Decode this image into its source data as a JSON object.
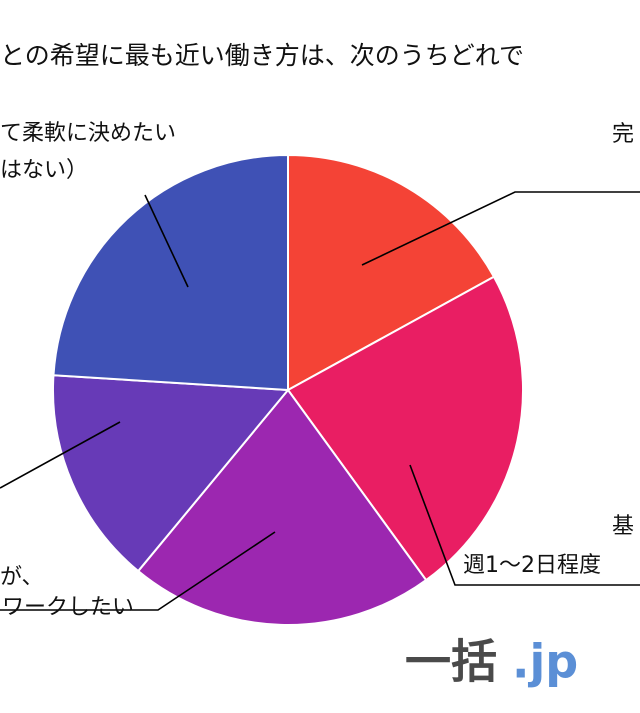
{
  "chart_data": {
    "type": "pie",
    "title": "との希望に最も近い働き方は、次のうちどれで",
    "categories": [
      [
        "完"
      ],
      [
        "基",
        "週1〜2日程度"
      ],
      [
        "が、",
        "ワークしたい"
      ],
      null,
      [
        "て柔軟に決めたい",
        "はない）"
      ]
    ],
    "values": [
      17,
      23,
      21,
      15,
      24
    ],
    "colors": [
      "#f44336",
      "#e91e63",
      "#9c27b0",
      "#673ab7",
      "#3f51b5"
    ],
    "watermark": [
      "一括",
      ".jp"
    ]
  }
}
